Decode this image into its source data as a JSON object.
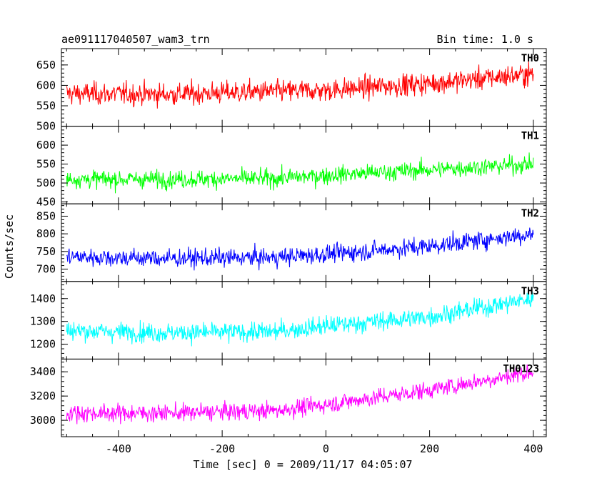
{
  "header": {
    "title": "ae091117040507_wam3_trn",
    "bin_time": "Bin time: 1.0 s"
  },
  "chart_data": {
    "type": "line",
    "xlabel": "Time [sec] 0 = 2009/11/17 04:05:07",
    "ylabel": "Counts/sec",
    "xlim": [
      -510,
      425
    ],
    "x_ticks": [
      -400,
      -200,
      0,
      200,
      400
    ],
    "x_range": [
      -500,
      400
    ],
    "grid": false,
    "panels": [
      {
        "name": "TH0",
        "color": "#ff0000",
        "ylim": [
          500,
          690
        ],
        "yticks": [
          500,
          550,
          600,
          650
        ],
        "trend": [
          [
            -500,
            580
          ],
          [
            -300,
            578
          ],
          [
            -200,
            582
          ],
          [
            0,
            588
          ],
          [
            200,
            605
          ],
          [
            400,
            628
          ]
        ],
        "amplitude": 42
      },
      {
        "name": "TH1",
        "color": "#00ff00",
        "ylim": [
          445,
          650
        ],
        "yticks": [
          450,
          500,
          550,
          600
        ],
        "trend": [
          [
            -500,
            510
          ],
          [
            -300,
            510
          ],
          [
            -100,
            512
          ],
          [
            0,
            520
          ],
          [
            200,
            535
          ],
          [
            400,
            550
          ]
        ],
        "amplitude": 36
      },
      {
        "name": "TH2",
        "color": "#0000ff",
        "ylim": [
          665,
          885
        ],
        "yticks": [
          700,
          750,
          800,
          850
        ],
        "trend": [
          [
            -500,
            735
          ],
          [
            -300,
            730
          ],
          [
            -100,
            733
          ],
          [
            0,
            742
          ],
          [
            200,
            765
          ],
          [
            400,
            800
          ]
        ],
        "amplitude": 40
      },
      {
        "name": "TH3",
        "color": "#00ffff",
        "ylim": [
          1135,
          1475
        ],
        "yticks": [
          1200,
          1300,
          1400
        ],
        "trend": [
          [
            -500,
            1260
          ],
          [
            -300,
            1250
          ],
          [
            -100,
            1255
          ],
          [
            0,
            1280
          ],
          [
            200,
            1320
          ],
          [
            400,
            1400
          ]
        ],
        "amplitude": 65
      },
      {
        "name": "TH0123",
        "color": "#ff00ff",
        "ylim": [
          2865,
          3505
        ],
        "yticks": [
          3000,
          3200,
          3400
        ],
        "trend": [
          [
            -500,
            3060
          ],
          [
            -300,
            3060
          ],
          [
            -100,
            3080
          ],
          [
            0,
            3130
          ],
          [
            200,
            3250
          ],
          [
            400,
            3400
          ]
        ],
        "amplitude": 110
      }
    ]
  }
}
